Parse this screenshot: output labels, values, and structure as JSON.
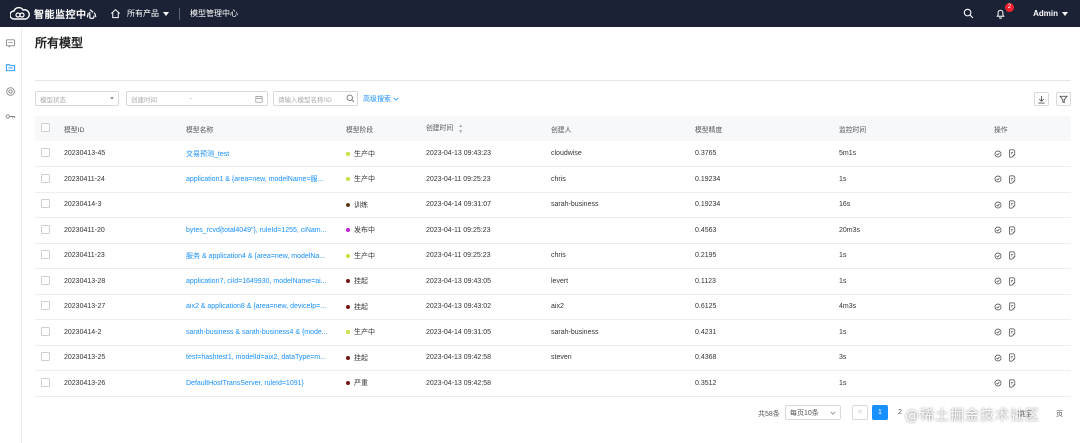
{
  "app": {
    "title": "智能监控中心",
    "nav": {
      "products": "所有产品",
      "current": "模型管理中心"
    },
    "notification_count": "2",
    "user": "Admin"
  },
  "page": {
    "title": "所有模型"
  },
  "filters": {
    "status_placeholder": "模型状态",
    "time_start_placeholder": "创建时间",
    "time_sep": "→",
    "search_placeholder": "请输入模型名称/ID",
    "advanced": "高级搜索"
  },
  "table": {
    "headers": [
      "模型ID",
      "模型名称",
      "模型阶段",
      "创建时间",
      "创建人",
      "模型精度",
      "监控时间",
      "操作"
    ],
    "rows": [
      {
        "id": "20230413-45",
        "name": "交易预测_test",
        "stage": "生产中",
        "stage_color": "#c6e03f",
        "time": "2023-04-13 09:43:23",
        "creator": "cloudwise",
        "precision": "0.3765",
        "monitor": "5m1s"
      },
      {
        "id": "20230411-24",
        "name": "application1 & {area=new, modelName=服...",
        "stage": "生产中",
        "stage_color": "#c6e03f",
        "time": "2023-04-11 09:25:23",
        "creator": "chris",
        "precision": "0.19234",
        "monitor": "1s"
      },
      {
        "id": "20230414-3",
        "name": "",
        "stage": "训练",
        "stage_color": "#5c3a1e",
        "time": "2023-04-14 09:31:07",
        "creator": "sarah-business",
        "precision": "0.19234",
        "monitor": "16s"
      },
      {
        "id": "20230411-20",
        "name": "bytes_rcvd{total4049\"}, ruleId=1255, ciNam...",
        "stage": "发布中",
        "stage_color": "#c21fd8",
        "time": "2023-04-11 09:25:23",
        "creator": "",
        "precision": "0.4563",
        "monitor": "20m3s"
      },
      {
        "id": "20230411-23",
        "name": "服务 & application4 & {area=new, modelNa...",
        "stage": "生产中",
        "stage_color": "#c6e03f",
        "time": "2023-04-11 09:25:23",
        "creator": "chris",
        "precision": "0.2195",
        "monitor": "1s"
      },
      {
        "id": "20230413-28",
        "name": "application7, ciId=1649930, modelName=ai...",
        "stage": "挂起",
        "stage_color": "#7a1515",
        "time": "2023-04-13 09:43:05",
        "creator": "levert",
        "precision": "0.1123",
        "monitor": "1s"
      },
      {
        "id": "20230413-27",
        "name": "aix2 & application8 & {area=new, deviceIp=...",
        "stage": "挂起",
        "stage_color": "#7a1515",
        "time": "2023-04-13 09:43:02",
        "creator": "aix2",
        "precision": "0.6125",
        "monitor": "4m3s"
      },
      {
        "id": "20230414-2",
        "name": "sarah-business & sarah-business4 & {mode...",
        "stage": "生产中",
        "stage_color": "#c6e03f",
        "time": "2023-04-14 09:31:05",
        "creator": "sarah-business",
        "precision": "0.4231",
        "monitor": "1s"
      },
      {
        "id": "20230413-25",
        "name": "test=hashtest1, modelId=aix2, dataType=m...",
        "stage": "挂起",
        "stage_color": "#7a1515",
        "time": "2023-04-13 09:42:58",
        "creator": "steven",
        "precision": "0.4368",
        "monitor": "3s"
      },
      {
        "id": "20230413-26",
        "name": "DefaultHostTransServer, ruleId=1091}",
        "stage": "严重",
        "stage_color": "#7a1515",
        "time": "2023-04-13 09:42:58",
        "creator": "",
        "precision": "0.3512",
        "monitor": "1s"
      }
    ]
  },
  "pagination": {
    "total": "共58条",
    "page_size": "每页10条",
    "prev": "<",
    "current": "1",
    "next_page": "2",
    "jump": "跳至",
    "page_suffix": "页"
  },
  "watermark": "@稀土掘金技术社区",
  "colors": {
    "topbar": "#1b2235",
    "accent": "#1890ff"
  }
}
